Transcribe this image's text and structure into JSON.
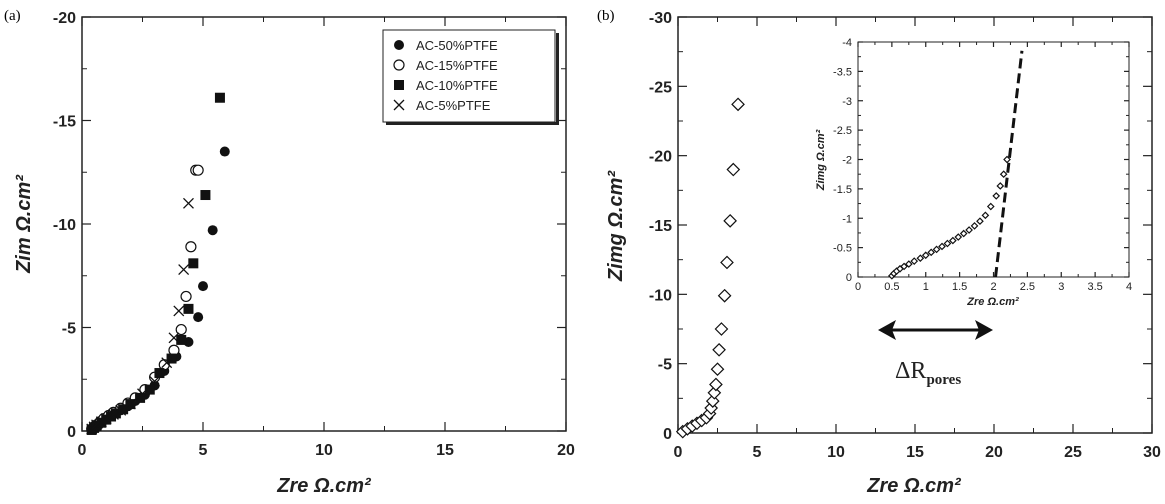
{
  "panels": {
    "a": "(a)",
    "b": "(b)"
  },
  "chart_data": [
    {
      "type": "scatter",
      "xlabel": "Zre Ω.cm²",
      "ylabel": "Zim Ω.cm²",
      "xlim": [
        0,
        20
      ],
      "ylim": [
        0,
        -20
      ],
      "xticks": [
        "0",
        "5",
        "10",
        "15",
        "20"
      ],
      "yticks": [
        "0",
        "-5",
        "-10",
        "-15",
        "-20"
      ],
      "legend_position": "top-right",
      "series": [
        {
          "name": "AC-50%PTFE",
          "marker": "filled-circle",
          "x": [
            0.5,
            0.6,
            0.7,
            0.8,
            1.0,
            1.2,
            1.4,
            1.6,
            1.9,
            2.2,
            2.6,
            3.0,
            3.4,
            3.9,
            4.4,
            4.8,
            5.0,
            5.4,
            5.9
          ],
          "y": [
            -0.1,
            -0.2,
            -0.3,
            -0.4,
            -0.55,
            -0.7,
            -0.85,
            -1.0,
            -1.2,
            -1.45,
            -1.75,
            -2.2,
            -2.9,
            -3.6,
            -4.3,
            -5.5,
            -7.0,
            -9.7,
            -13.5
          ]
        },
        {
          "name": "AC-15%PTFE",
          "marker": "open-circle",
          "x": [
            0.4,
            0.5,
            0.6,
            0.75,
            0.9,
            1.1,
            1.3,
            1.6,
            1.9,
            2.2,
            2.6,
            3.0,
            3.4,
            3.8,
            4.1,
            4.3,
            4.5,
            4.7,
            4.8
          ],
          "y": [
            -0.1,
            -0.2,
            -0.3,
            -0.45,
            -0.6,
            -0.75,
            -0.9,
            -1.1,
            -1.35,
            -1.6,
            -2.0,
            -2.6,
            -3.2,
            -3.9,
            -4.9,
            -6.5,
            -8.9,
            -12.6,
            -12.6
          ]
        },
        {
          "name": "AC-10%PTFE",
          "marker": "filled-square",
          "x": [
            0.4,
            0.5,
            0.6,
            0.8,
            1.0,
            1.2,
            1.4,
            1.7,
            2.0,
            2.4,
            2.8,
            3.2,
            3.7,
            4.1,
            4.4,
            4.6,
            5.1,
            5.7
          ],
          "y": [
            -0.05,
            -0.15,
            -0.25,
            -0.4,
            -0.55,
            -0.7,
            -0.85,
            -1.05,
            -1.3,
            -1.6,
            -2.0,
            -2.8,
            -3.5,
            -4.4,
            -5.9,
            -8.1,
            -11.4,
            -16.1
          ]
        },
        {
          "name": "AC-5%PTFE",
          "marker": "cross",
          "x": [
            0.4,
            0.5,
            0.6,
            0.8,
            1.0,
            1.3,
            1.6,
            2.0,
            2.5,
            3.0,
            3.5,
            3.8,
            4.0,
            4.2,
            4.4
          ],
          "y": [
            -0.1,
            -0.2,
            -0.3,
            -0.45,
            -0.6,
            -0.8,
            -1.0,
            -1.3,
            -1.8,
            -2.4,
            -3.3,
            -4.5,
            -5.8,
            -7.8,
            -11.0
          ]
        }
      ]
    },
    {
      "type": "scatter",
      "xlabel": "Zre Ω.cm²",
      "ylabel": "Zimg Ω.cm²",
      "xlim": [
        0,
        30
      ],
      "ylim": [
        0,
        -30
      ],
      "xticks": [
        "0",
        "5",
        "10",
        "15",
        "20",
        "25",
        "30"
      ],
      "yticks": [
        "0",
        "-5",
        "-10",
        "-15",
        "-20",
        "-25",
        "-30"
      ],
      "series": [
        {
          "marker": "open-diamond",
          "x": [
            0.3,
            0.6,
            0.9,
            1.2,
            1.5,
            1.8,
            2.0,
            2.1,
            2.2,
            2.3,
            2.4,
            2.5,
            2.6,
            2.75,
            2.95,
            3.1,
            3.3,
            3.5,
            3.8
          ],
          "y": [
            -0.1,
            -0.3,
            -0.5,
            -0.7,
            -0.9,
            -1.1,
            -1.4,
            -1.8,
            -2.3,
            -2.9,
            -3.5,
            -4.6,
            -6.0,
            -7.5,
            -9.9,
            -12.3,
            -15.3,
            -19.0,
            -23.7
          ]
        }
      ],
      "annotation": {
        "label": "ΔR",
        "subscript": "pores"
      },
      "inset": {
        "xlabel": "Zre Ω.cm²",
        "ylabel": "Zimg Ω.cm²",
        "xlim": [
          0,
          4
        ],
        "ylim": [
          0,
          -4
        ],
        "xticks": [
          "0",
          "0.5",
          "1",
          "1.5",
          "2",
          "2.5",
          "3",
          "3.5",
          "4"
        ],
        "yticks": [
          "0",
          "-0.5",
          "-1",
          "-1.5",
          "-2",
          "-2.5",
          "-3",
          "-3.5",
          "-4"
        ],
        "series": [
          {
            "marker": "open-diamond",
            "x": [
              0.5,
              0.53,
              0.57,
              0.62,
              0.68,
              0.75,
              0.83,
              0.92,
              1.0,
              1.08,
              1.16,
              1.24,
              1.32,
              1.4,
              1.48,
              1.56,
              1.64,
              1.72,
              1.8,
              1.88,
              1.96,
              2.04,
              2.1,
              2.15,
              2.2
            ],
            "y": [
              -0.02,
              -0.06,
              -0.1,
              -0.14,
              -0.18,
              -0.22,
              -0.27,
              -0.32,
              -0.37,
              -0.42,
              -0.47,
              -0.52,
              -0.57,
              -0.62,
              -0.68,
              -0.74,
              -0.8,
              -0.87,
              -0.95,
              -1.05,
              -1.2,
              -1.38,
              -1.55,
              -1.75,
              -2.0
            ]
          }
        ],
        "fit_line": {
          "x": [
            2.03,
            2.42
          ],
          "y": [
            0,
            -3.85
          ]
        }
      }
    }
  ]
}
